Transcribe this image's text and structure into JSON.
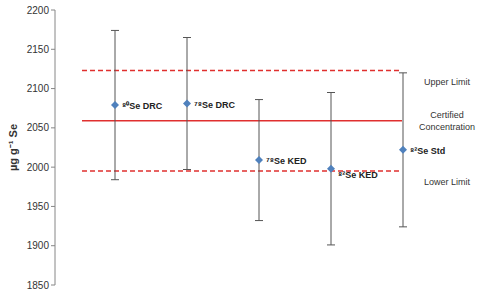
{
  "chart_data": {
    "type": "errorbar",
    "y_label": "µg g⁻¹ Se",
    "categories": [
      "⁸⁰Se DRC",
      "⁷⁸Se DRC",
      "⁷⁸Se KED",
      "⁸²Se KED",
      "⁸²Se Std"
    ],
    "values": [
      2079,
      2081,
      2009,
      1998,
      2022
    ],
    "errors": [
      95,
      84,
      77,
      97,
      98
    ],
    "color": "#4f81bd",
    "marker": "diamond",
    "data_labels": true,
    "tick_labels": "y",
    "grid": false,
    "ylim": [
      1850,
      2200
    ],
    "yticks": [
      1850,
      1900,
      1950,
      2000,
      2050,
      2100,
      2150,
      2200
    ],
    "reference_lines": [
      {
        "label": "Upper Limit",
        "value": 2123,
        "color": "#e0302f",
        "line_style": "dashed"
      },
      {
        "label": "Certified Concentration",
        "value": 2059,
        "color": "#e0302f",
        "line_style": "solid"
      },
      {
        "label": "Lower Limit",
        "value": 1995,
        "color": "#e0302f",
        "line_style": "dashed"
      }
    ]
  }
}
